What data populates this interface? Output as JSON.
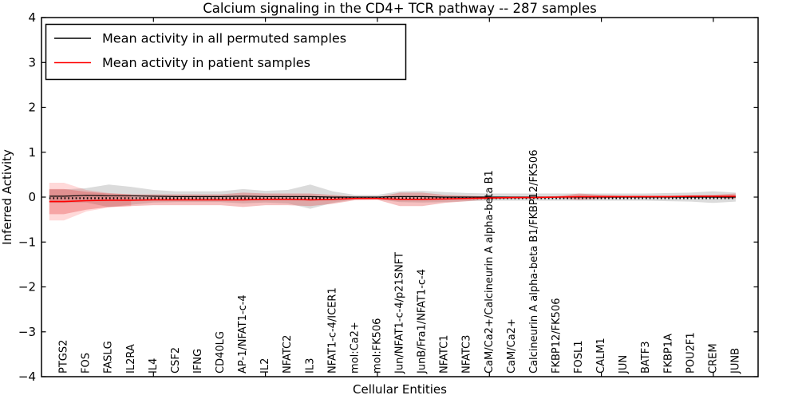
{
  "title": "Calcium signaling in the CD4+ TCR pathway -- 287 samples",
  "axes": {
    "xlabel": "Cellular Entities",
    "ylabel": "Inferred Activity",
    "yticks": [
      "4",
      "3",
      "2",
      "1",
      "0",
      "−1",
      "−2",
      "−3",
      "−4"
    ]
  },
  "legend": {
    "entries": [
      {
        "label": "Mean activity in all permuted samples",
        "color": "#000000"
      },
      {
        "label": "Mean activity in patient samples",
        "color": "#ff0000"
      }
    ]
  },
  "chart_data": {
    "type": "line",
    "title": "Calcium signaling in the CD4+ TCR pathway -- 287 samples",
    "xlabel": "Cellular Entities",
    "ylabel": "Inferred Activity",
    "ylim": [
      -4,
      4
    ],
    "grid": false,
    "legend_position": "upper left",
    "categories": [
      "PTGS2",
      "FOS",
      "FASLG",
      "IL2RA",
      "IL4",
      "CSF2",
      "IFNG",
      "CD40LG",
      "AP-1/NFAT1-c-4",
      "IL2",
      "NFATC2",
      "IL3",
      "NFAT1-c-4/ICER1",
      "mol:Ca2+",
      "mol:FK506",
      "Jun/NFAT1-c-4/p21SNFT",
      "JunB/Fra1/NFAT1-c-4",
      "NFATC1",
      "NFATC3",
      "CaM/Ca2+/Calcineurin A alpha-beta B1",
      "CaM/Ca2+",
      "Calcineurin A alpha-beta B1/FKBP12/FK506",
      "FKBP12/FK506",
      "FOSL1",
      "CALM1",
      "JUN",
      "BATF3",
      "FKBP1A",
      "POU2F1",
      "CREM",
      "JUNB"
    ],
    "series": [
      {
        "name": "Mean activity in all permuted samples",
        "color": "#000000",
        "band_color": "#888888",
        "values": [
          0.02,
          0.04,
          0.03,
          0.03,
          0.02,
          0.01,
          0.01,
          0.01,
          0.02,
          0.01,
          0.01,
          0.01,
          0.0,
          0.0,
          0.0,
          0.01,
          0.01,
          0.0,
          0.0,
          0.0,
          0.0,
          0.0,
          0.0,
          0.0,
          0.0,
          0.0,
          0.0,
          0.0,
          0.0,
          0.0,
          0.0
        ],
        "band": [
          0.15,
          0.16,
          0.25,
          0.2,
          0.14,
          0.12,
          0.12,
          0.12,
          0.16,
          0.13,
          0.15,
          0.27,
          0.13,
          0.05,
          0.05,
          0.12,
          0.13,
          0.11,
          0.09,
          0.08,
          0.08,
          0.08,
          0.08,
          0.08,
          0.08,
          0.08,
          0.08,
          0.09,
          0.1,
          0.13,
          0.1
        ]
      },
      {
        "name": "Mean activity in patient samples",
        "color": "#ff0000",
        "band_color": "#e03030",
        "values": [
          -0.1,
          -0.08,
          -0.07,
          -0.07,
          -0.06,
          -0.06,
          -0.06,
          -0.06,
          -0.06,
          -0.05,
          -0.05,
          -0.06,
          -0.05,
          -0.03,
          -0.03,
          -0.05,
          -0.05,
          -0.04,
          -0.03,
          -0.02,
          -0.01,
          -0.01,
          0.0,
          0.01,
          0.01,
          0.01,
          0.01,
          0.01,
          0.02,
          0.02,
          0.02
        ],
        "band": [
          0.28,
          0.2,
          0.15,
          0.13,
          0.12,
          0.12,
          0.12,
          0.12,
          0.16,
          0.13,
          0.13,
          0.14,
          0.1,
          0.04,
          0.03,
          0.15,
          0.15,
          0.09,
          0.06,
          0.03,
          0.02,
          0.02,
          0.02,
          0.07,
          0.04,
          0.02,
          0.02,
          0.02,
          0.02,
          0.03,
          0.06
        ],
        "band_outer": [
          0.42,
          0.24,
          0.16,
          0.13,
          0.12,
          0.12,
          0.12,
          0.12,
          0.16,
          0.13,
          0.13,
          0.14,
          0.1,
          0.04,
          0.03,
          0.15,
          0.15,
          0.09,
          0.06,
          0.03,
          0.02,
          0.02,
          0.02,
          0.07,
          0.04,
          0.02,
          0.02,
          0.02,
          0.02,
          0.03,
          0.06
        ]
      }
    ]
  }
}
